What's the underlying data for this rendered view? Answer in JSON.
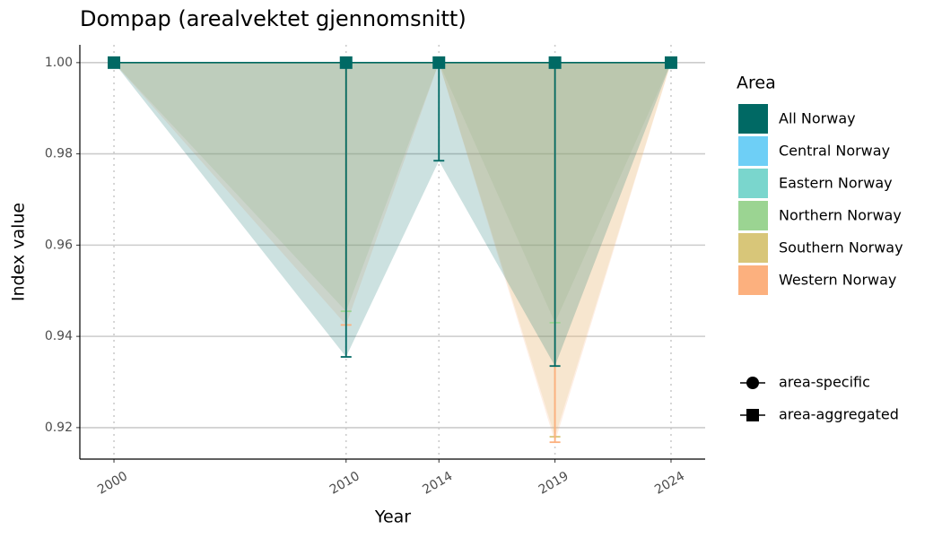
{
  "chart_data": {
    "type": "line",
    "title": "Dompap (arealvektet gjennomsnitt)",
    "x_label": "Year",
    "y_label": "Index value",
    "x": [
      2000,
      2010,
      2014,
      2019,
      2024
    ],
    "series": [
      {
        "name": "Central Norway",
        "color": "#6ecff6",
        "shape": "circle",
        "values": [
          1,
          1,
          1,
          1,
          1
        ],
        "lower": [
          1,
          1,
          1,
          1,
          1
        ]
      },
      {
        "name": "Eastern Norway",
        "color": "#7ad6cd",
        "shape": "circle",
        "values": [
          1,
          1,
          1,
          1,
          1
        ],
        "lower": [
          1,
          1,
          1,
          1,
          1
        ]
      },
      {
        "name": "Northern Norway",
        "color": "#9bd492",
        "shape": "circle",
        "values": [
          1,
          1,
          1,
          1,
          1
        ],
        "lower": [
          1,
          0.9455,
          1,
          0.943,
          1
        ]
      },
      {
        "name": "Southern Norway",
        "color": "#d8c679",
        "shape": "circle",
        "values": [
          1,
          1,
          1,
          1,
          1
        ],
        "lower": [
          1,
          1,
          1,
          0.918,
          1
        ]
      },
      {
        "name": "Western Norway",
        "color": "#fcb07e",
        "shape": "circle",
        "values": [
          1,
          1,
          1,
          1,
          1
        ],
        "lower": [
          1,
          0.9425,
          1,
          0.9168,
          1
        ]
      },
      {
        "name": "All Norway",
        "color": "#006964",
        "shape": "square",
        "values": [
          1,
          1,
          1,
          1,
          1
        ],
        "lower": [
          1,
          0.9355,
          0.9785,
          0.9335,
          1
        ]
      }
    ],
    "legend_title": "Area",
    "legend_order": [
      5,
      0,
      1,
      2,
      3,
      4
    ],
    "shape_legend": [
      {
        "label": "area-specific",
        "shape": "circle"
      },
      {
        "label": "area-aggregated",
        "shape": "square"
      }
    ],
    "xlim": [
      1998.53,
      2025.47
    ],
    "xticks": [
      2000,
      2010,
      2014,
      2019,
      2024
    ],
    "ylim": [
      0.9131,
      1.0039
    ],
    "yticks": [
      {
        "value": 0.92,
        "label": "0.92"
      },
      {
        "value": 0.94,
        "label": "0.94"
      },
      {
        "value": 0.96,
        "label": "0.96"
      },
      {
        "value": 0.98,
        "label": "0.98"
      },
      {
        "value": 1,
        "label": "1.00"
      }
    ],
    "grid": true,
    "legend_position": "right"
  }
}
